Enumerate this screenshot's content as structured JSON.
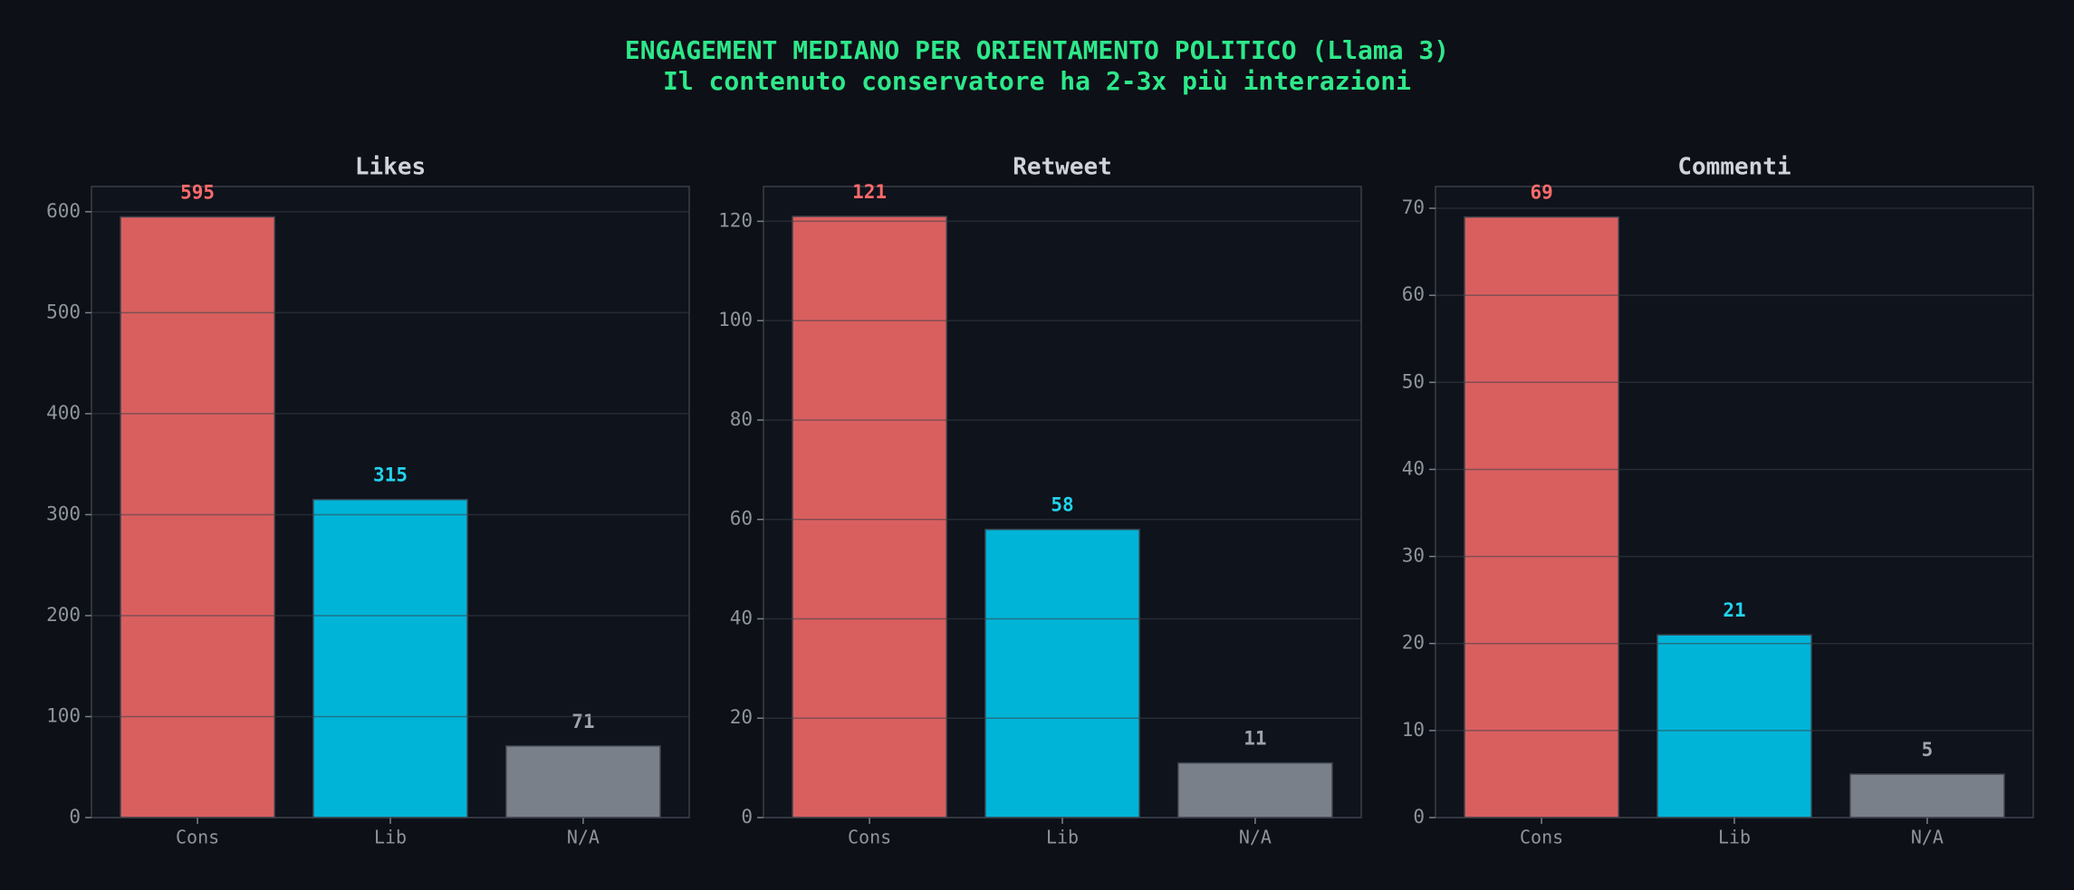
{
  "title": "ENGAGEMENT MEDIANO PER ORIENTAMENTO POLITICO (Llama 3)",
  "subtitle": "Il contenuto conservatore ha 2-3x più interazioni",
  "chart_data": [
    {
      "type": "bar",
      "title": "Likes",
      "categories": [
        "Cons",
        "Lib",
        "N/A"
      ],
      "values": [
        595,
        315,
        71
      ],
      "colors": [
        "#d95f5f",
        "#00b4d8",
        "#7a808a"
      ],
      "label_colors": [
        "#ff6b6b",
        "#22d3ee",
        "#a0a4ab"
      ],
      "ylim": [
        0,
        625
      ],
      "yticks": [
        0,
        100,
        200,
        300,
        400,
        500,
        600
      ],
      "grid": true
    },
    {
      "type": "bar",
      "title": "Retweet",
      "categories": [
        "Cons",
        "Lib",
        "N/A"
      ],
      "values": [
        121,
        58,
        11
      ],
      "colors": [
        "#d95f5f",
        "#00b4d8",
        "#7a808a"
      ],
      "label_colors": [
        "#ff6b6b",
        "#22d3ee",
        "#a0a4ab"
      ],
      "ylim": [
        0,
        127
      ],
      "yticks": [
        0,
        20,
        40,
        60,
        80,
        100,
        120
      ],
      "grid": true
    },
    {
      "type": "bar",
      "title": "Commenti",
      "categories": [
        "Cons",
        "Lib",
        "N/A"
      ],
      "values": [
        69,
        21,
        5
      ],
      "colors": [
        "#d95f5f",
        "#00b4d8",
        "#7a808a"
      ],
      "label_colors": [
        "#ff6b6b",
        "#22d3ee",
        "#a0a4ab"
      ],
      "ylim": [
        0,
        72.5
      ],
      "yticks": [
        0,
        10,
        20,
        30,
        40,
        50,
        60,
        70
      ],
      "grid": true
    }
  ]
}
